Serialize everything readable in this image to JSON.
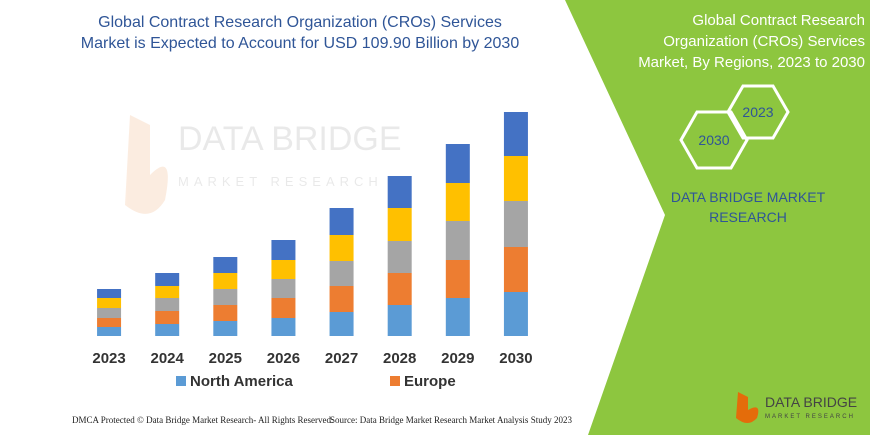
{
  "chart_data": {
    "type": "bar",
    "stacked": true,
    "title": "Global Contract Research Organization (CROs) Services Market is Expected to Account for USD 109.90 Billion by 2030",
    "categories": [
      "2023",
      "2024",
      "2025",
      "2026",
      "2027",
      "2028",
      "2029",
      "2030"
    ],
    "series": [
      {
        "name": "North America",
        "color": "#5b9bd5",
        "values": [
          9,
          12,
          15,
          18,
          24,
          31,
          38,
          44
        ]
      },
      {
        "name": "Europe",
        "color": "#ed7d31",
        "values": [
          9,
          13,
          16,
          20,
          26,
          32,
          38,
          45
        ]
      },
      {
        "color": "#a5a5a5",
        "values": [
          10,
          13,
          16,
          19,
          25,
          32,
          39,
          46
        ]
      },
      {
        "color": "#ffc000",
        "values": [
          10,
          12,
          16,
          19,
          26,
          33,
          38,
          45
        ]
      },
      {
        "color": "#4472c4",
        "values": [
          9,
          13,
          16,
          20,
          27,
          32,
          39,
          44
        ]
      }
    ],
    "ylim": [
      0,
      224
    ]
  },
  "panel": {
    "title": "Global Contract Research Organization (CROs) Services Market, By Regions, 2023 to 2030",
    "hexagons": [
      "2023",
      "2030"
    ],
    "brand": "DATA BRIDGE MARKET RESEARCH"
  },
  "logo": {
    "name": "DATA BRIDGE",
    "tagline": "MARKET RESEARCH"
  },
  "footer": {
    "left": "DMCA Protected © Data Bridge Market Research-  All Rights Reserved.",
    "right": "Source: Data Bridge Market Research  Market Analysis Study 2023"
  }
}
